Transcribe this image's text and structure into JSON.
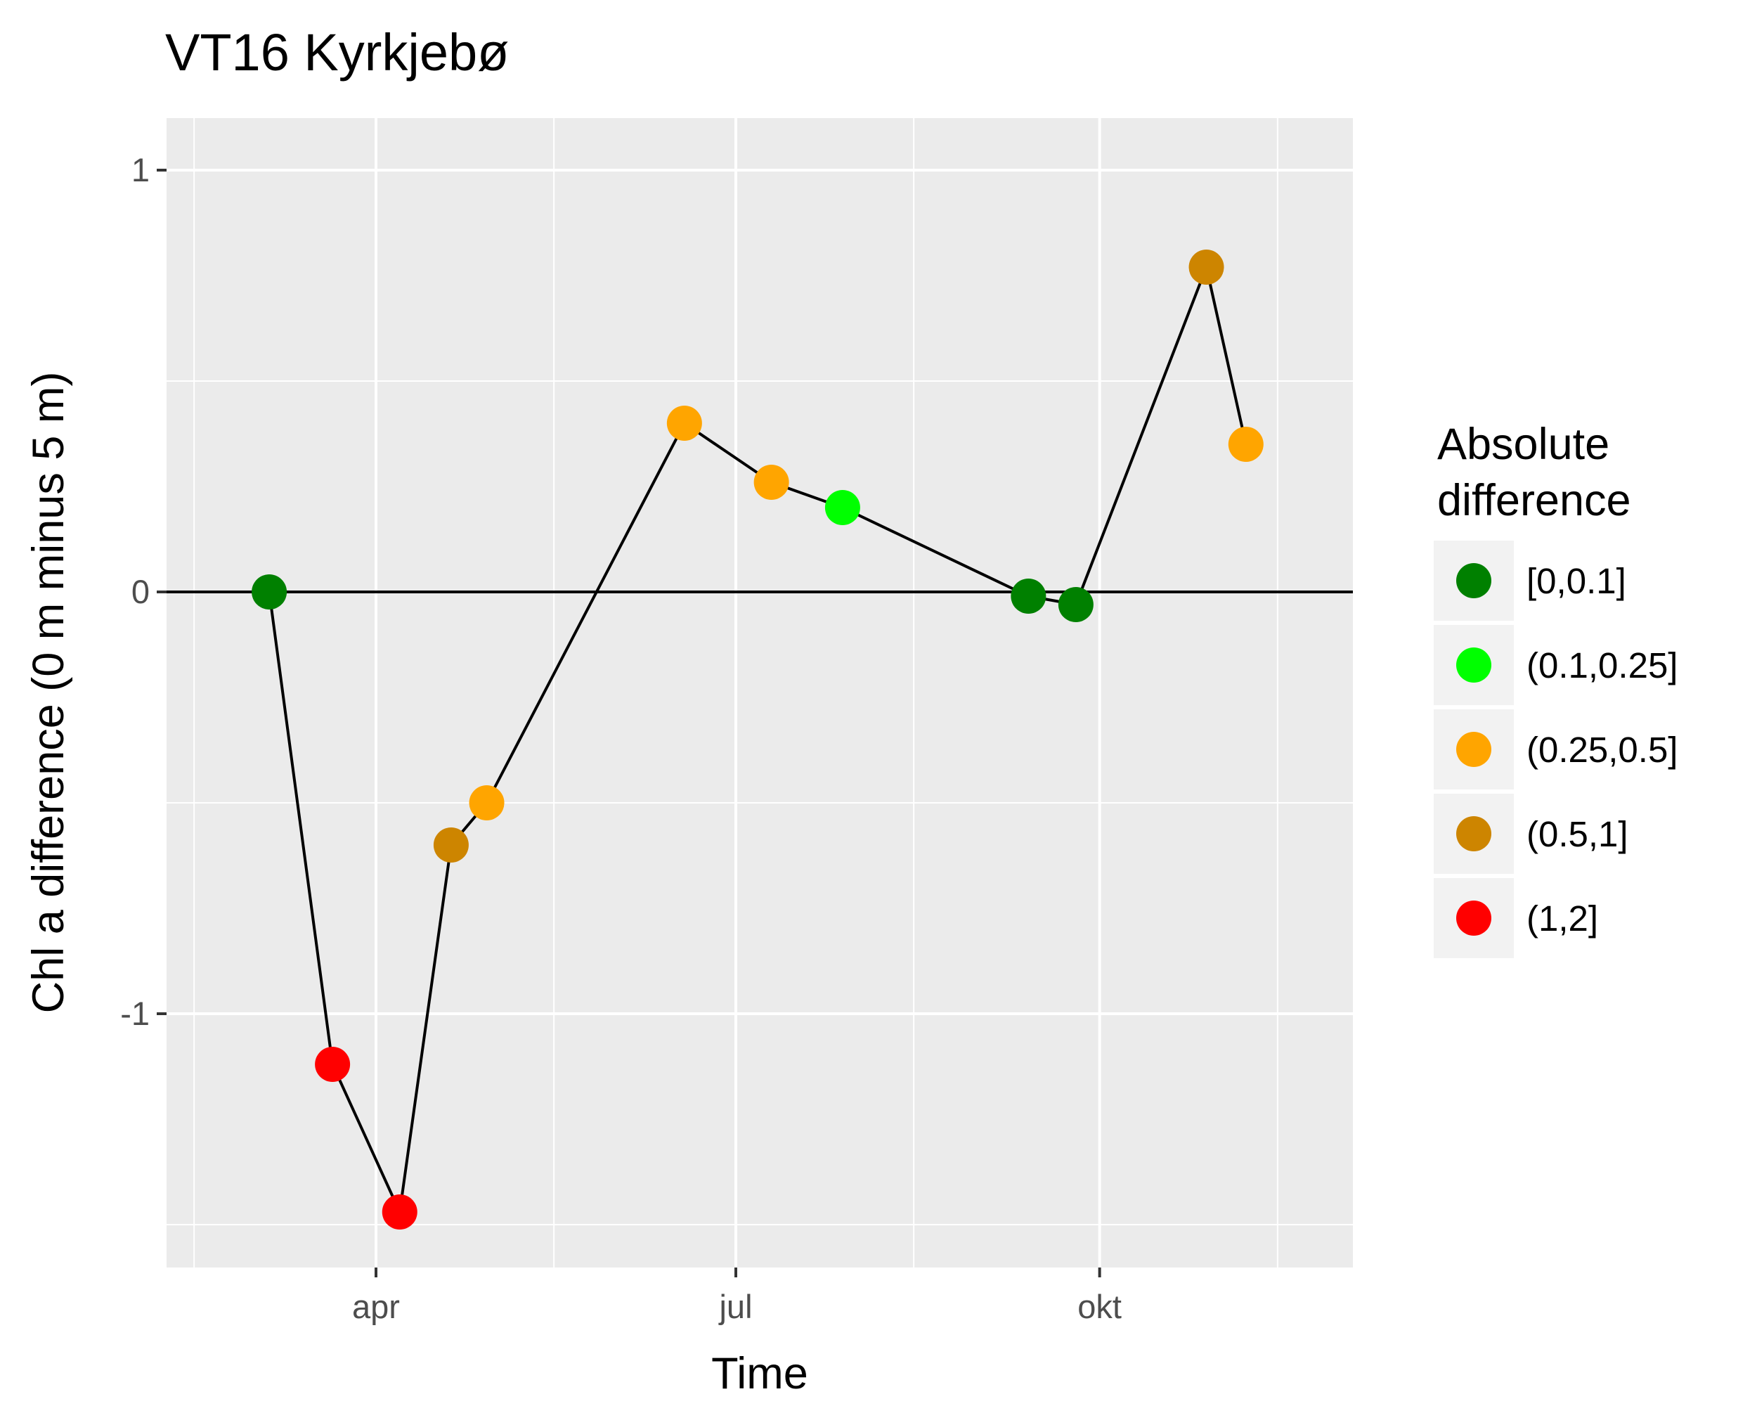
{
  "chart_data": {
    "type": "line",
    "title": "VT16 Kyrkjebø",
    "xlabel": "Time",
    "ylabel": "Chl a difference (0 m minus 5 m)",
    "x_tick_labels": [
      "apr",
      "jul",
      "okt"
    ],
    "y_tick_labels": [
      "-1",
      "0",
      "1"
    ],
    "ylim": [
      -1.6,
      1.13
    ],
    "grid": true,
    "reference_line_y": 0,
    "legend": {
      "title_lines": [
        "Absolute",
        "difference"
      ],
      "position": "right",
      "entries": [
        {
          "label": "[0,0.1]",
          "color": "#008000"
        },
        {
          "label": "(0.1,0.25]",
          "color": "#00ff00"
        },
        {
          "label": "(0.25,0.5]",
          "color": "#ffa500"
        },
        {
          "label": "(0.5,1]",
          "color": "#cd8500"
        },
        {
          "label": "(1,2]",
          "color": "#ff0000"
        }
      ]
    },
    "series": [
      {
        "points": [
          {
            "date": "2016-03-05",
            "y": 0.0,
            "class": "[0,0.1]"
          },
          {
            "date": "2016-03-21",
            "y": -1.12,
            "class": "(1,2]"
          },
          {
            "date": "2016-04-07",
            "y": -1.47,
            "class": "(1,2]"
          },
          {
            "date": "2016-04-20",
            "y": -0.6,
            "class": "(0.5,1]"
          },
          {
            "date": "2016-04-29",
            "y": -0.5,
            "class": "(0.25,0.5]"
          },
          {
            "date": "2016-06-18",
            "y": 0.4,
            "class": "(0.25,0.5]"
          },
          {
            "date": "2016-07-10",
            "y": 0.26,
            "class": "(0.25,0.5]"
          },
          {
            "date": "2016-07-28",
            "y": 0.2,
            "class": "(0.1,0.25]"
          },
          {
            "date": "2016-09-13",
            "y": -0.01,
            "class": "[0,0.1]"
          },
          {
            "date": "2016-09-25",
            "y": -0.03,
            "class": "[0,0.1]"
          },
          {
            "date": "2016-10-28",
            "y": 0.77,
            "class": "(0.5,1]"
          },
          {
            "date": "2016-11-07",
            "y": 0.35,
            "class": "(0.25,0.5]"
          }
        ]
      }
    ]
  }
}
